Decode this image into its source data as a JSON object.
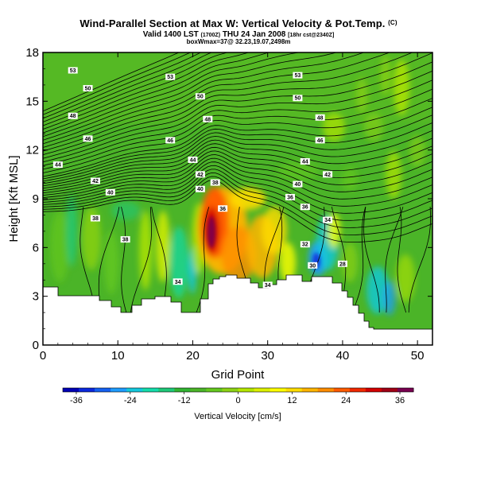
{
  "title": {
    "main": "Wind-Parallel Section at Max W: Vertical Velocity & Pot.Temp.",
    "main_mark": "(C)",
    "valid_line_a": "Valid 1400 LST",
    "valid_line_b_small": "(1700Z)",
    "valid_line_c": "THU 24 Jan 2008",
    "valid_line_d_small": "[18hr cst@2340Z]",
    "boxmax": "boxWmax=37@ 32.23,19.07,2498m"
  },
  "chart_data": {
    "type": "heatmap",
    "xlabel": "Grid Point",
    "ylabel": "Height [Kft MSL]",
    "xlim": [
      0,
      52
    ],
    "ylim": [
      0,
      18
    ],
    "x_ticks": [
      "0",
      "10",
      "20",
      "30",
      "40",
      "50"
    ],
    "y_ticks": [
      "0",
      "3",
      "6",
      "9",
      "12",
      "15",
      "18"
    ],
    "colorbar": {
      "title": "Vertical Velocity [cm/s]",
      "range": [
        -39,
        39
      ],
      "tick_values": [
        -36,
        -24,
        -12,
        0,
        12,
        24,
        36
      ],
      "tick_labels": [
        "-36",
        "-24",
        "-12",
        "0",
        "12",
        "24",
        "36"
      ],
      "colors": [
        "#0000b4",
        "#0a28dc",
        "#1460f0",
        "#1e9cff",
        "#14c8dc",
        "#14dcaa",
        "#1ec878",
        "#32b432",
        "#4bb428",
        "#64c81e",
        "#8cd214",
        "#b4e600",
        "#dcf000",
        "#ffff00",
        "#ffdc00",
        "#ffb400",
        "#ff8c00",
        "#ff5a00",
        "#f02800",
        "#d20000",
        "#a00014",
        "#780050"
      ]
    },
    "contour_labels": [
      {
        "x": 4,
        "y": 16.9,
        "text": "53"
      },
      {
        "x": 17,
        "y": 16.5,
        "text": "53"
      },
      {
        "x": 34,
        "y": 16.6,
        "text": "53"
      },
      {
        "x": 6,
        "y": 15.8,
        "text": "50"
      },
      {
        "x": 21,
        "y": 15.3,
        "text": "50"
      },
      {
        "x": 34,
        "y": 15.2,
        "text": "50"
      },
      {
        "x": 4,
        "y": 14.1,
        "text": "48"
      },
      {
        "x": 22,
        "y": 13.9,
        "text": "48"
      },
      {
        "x": 37,
        "y": 14.0,
        "text": "48"
      },
      {
        "x": 6,
        "y": 12.7,
        "text": "46"
      },
      {
        "x": 17,
        "y": 12.6,
        "text": "46"
      },
      {
        "x": 37,
        "y": 12.6,
        "text": "46"
      },
      {
        "x": 2,
        "y": 11.1,
        "text": "44"
      },
      {
        "x": 20,
        "y": 11.4,
        "text": "44"
      },
      {
        "x": 35,
        "y": 11.3,
        "text": "44"
      },
      {
        "x": 7,
        "y": 10.1,
        "text": "42"
      },
      {
        "x": 21,
        "y": 10.5,
        "text": "42"
      },
      {
        "x": 38,
        "y": 10.5,
        "text": "42"
      },
      {
        "x": 9,
        "y": 9.4,
        "text": "40"
      },
      {
        "x": 21,
        "y": 9.6,
        "text": "40"
      },
      {
        "x": 34,
        "y": 9.9,
        "text": "40"
      },
      {
        "x": 23,
        "y": 10.0,
        "text": "38"
      },
      {
        "x": 33,
        "y": 9.1,
        "text": "36"
      },
      {
        "x": 35,
        "y": 8.5,
        "text": "36"
      },
      {
        "x": 24,
        "y": 8.4,
        "text": "36"
      },
      {
        "x": 7,
        "y": 7.8,
        "text": "38"
      },
      {
        "x": 11,
        "y": 6.5,
        "text": "38"
      },
      {
        "x": 38,
        "y": 7.7,
        "text": "34"
      },
      {
        "x": 35,
        "y": 6.2,
        "text": "32"
      },
      {
        "x": 36,
        "y": 4.9,
        "text": "30"
      },
      {
        "x": 40,
        "y": 5.0,
        "text": "28"
      },
      {
        "x": 18,
        "y": 3.9,
        "text": "34"
      },
      {
        "x": 30,
        "y": 3.7,
        "text": "34"
      }
    ]
  }
}
